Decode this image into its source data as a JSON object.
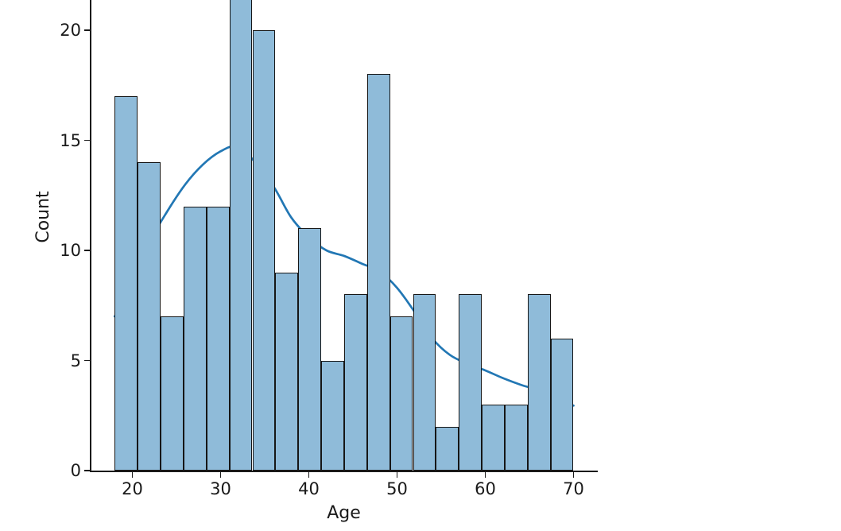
{
  "figure": {
    "background": "#ffffff",
    "bar_fill": "#8fbbd9",
    "bar_edge": "#161616",
    "kde_color": "#2277b4",
    "spine_color": "#1a1a1a",
    "text_color": "#1a1a1a"
  },
  "chart_data": {
    "type": "bar",
    "subtype": "histogram-with-kde",
    "title": "",
    "xlabel": "Age",
    "ylabel": "Count",
    "grid": false,
    "legend": null,
    "bin_edges": [
      18.0,
      20.6,
      23.2,
      25.8,
      28.4,
      31.0,
      33.6,
      36.2,
      38.8,
      41.4,
      44.0,
      46.6,
      49.2,
      51.8,
      54.4,
      57.0,
      59.6,
      62.2,
      64.8,
      67.4,
      70.0
    ],
    "values": [
      17,
      14,
      7,
      12,
      12,
      22,
      20,
      9,
      11,
      5,
      8,
      18,
      7,
      8,
      2,
      8,
      3,
      3,
      8,
      6
    ],
    "x_ticks": [
      20,
      30,
      40,
      50,
      60,
      70
    ],
    "y_ticks": [
      0,
      5,
      10,
      15,
      20
    ],
    "xlim": [
      15.36,
      72.75
    ],
    "ylim_visible": [
      0,
      21.37
    ],
    "clipped_bar_bin": "31.0-33.6",
    "kde": {
      "type": "line",
      "x": [
        18,
        20,
        22,
        24,
        26,
        28,
        30,
        31.8,
        33.6,
        36,
        38,
        40,
        42,
        44,
        46,
        48,
        50,
        52,
        54,
        56,
        58,
        60,
        62,
        64,
        66,
        68,
        70
      ],
      "y": [
        7.0,
        8.4,
        10.4,
        11.8,
        13.0,
        13.9,
        14.5,
        14.72,
        14.15,
        12.9,
        11.5,
        10.6,
        10.0,
        9.75,
        9.4,
        9.05,
        8.3,
        7.2,
        6.0,
        5.25,
        4.85,
        4.55,
        4.2,
        3.9,
        3.65,
        3.3,
        2.95
      ]
    }
  }
}
